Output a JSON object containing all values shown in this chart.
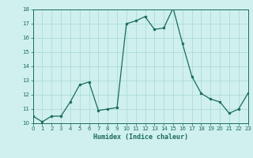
{
  "x": [
    0,
    1,
    2,
    3,
    4,
    5,
    6,
    7,
    8,
    9,
    10,
    11,
    12,
    13,
    14,
    15,
    16,
    17,
    18,
    19,
    20,
    21,
    22,
    23
  ],
  "y": [
    10.5,
    10.1,
    10.5,
    10.5,
    11.5,
    12.7,
    12.9,
    10.9,
    11.0,
    11.1,
    17.0,
    17.2,
    17.5,
    16.6,
    16.7,
    18.1,
    15.6,
    13.3,
    12.1,
    11.7,
    11.5,
    10.7,
    11.0,
    12.1
  ],
  "xlabel": "Humidex (Indice chaleur)",
  "ylim": [
    10,
    18
  ],
  "xlim": [
    0,
    23
  ],
  "yticks": [
    10,
    11,
    12,
    13,
    14,
    15,
    16,
    17,
    18
  ],
  "xticks": [
    0,
    1,
    2,
    3,
    4,
    5,
    6,
    7,
    8,
    9,
    10,
    11,
    12,
    13,
    14,
    15,
    16,
    17,
    18,
    19,
    20,
    21,
    22,
    23
  ],
  "line_color": "#1a6b5a",
  "marker_color": "#1a6b5a",
  "bg_color": "#cff0ee",
  "grid_color": "#a8d8d4",
  "axis_color": "#1a6b5a",
  "tick_color": "#1a6b5a",
  "label_color": "#1a6b5a"
}
